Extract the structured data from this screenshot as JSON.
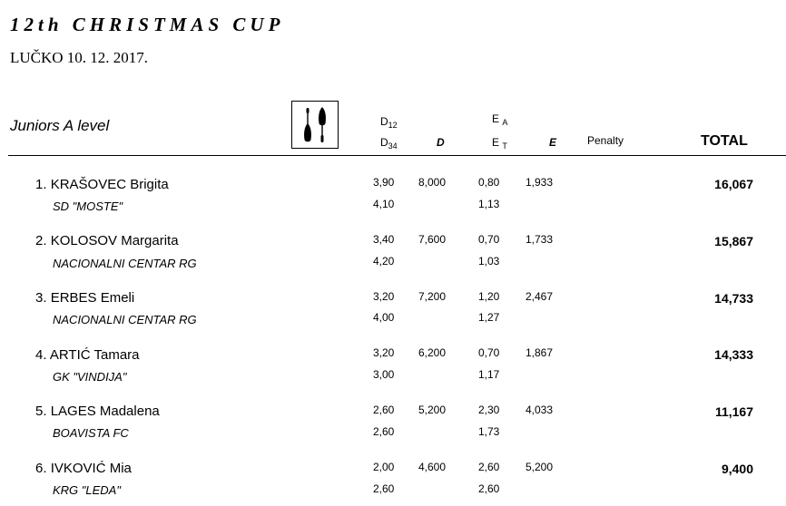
{
  "header": {
    "title": "12th CHRISTMAS CUP",
    "subtitle": "LUČKO 10. 12. 2017."
  },
  "section": {
    "level": "Juniors A level",
    "apparatus_icon": "clubs-icon"
  },
  "columns": {
    "d_upper": "D",
    "d_upper_sub": "12",
    "d_lower": "D",
    "d_lower_sub": "34",
    "d_total": "D",
    "e_upper": "E",
    "e_upper_sub": "A",
    "e_lower": "E",
    "e_lower_sub": "T",
    "e_total": "E",
    "penalty": "Penalty",
    "total": "TOTAL"
  },
  "results": [
    {
      "rank": "1.",
      "name": "KRAŠOVEC Brigita",
      "club": "SD \"MOSTE\"",
      "d12": "3,90",
      "d34": "4,10",
      "d": "8,000",
      "ea": "0,80",
      "et": "1,13",
      "e": "1,933",
      "penalty": "",
      "total": "16,067"
    },
    {
      "rank": "2.",
      "name": "KOLOSOV Margarita",
      "club": "NACIONALNI CENTAR RG",
      "d12": "3,40",
      "d34": "4,20",
      "d": "7,600",
      "ea": "0,70",
      "et": "1,03",
      "e": "1,733",
      "penalty": "",
      "total": "15,867"
    },
    {
      "rank": "3.",
      "name": "ERBES Emeli",
      "club": "NACIONALNI CENTAR RG",
      "d12": "3,20",
      "d34": "4,00",
      "d": "7,200",
      "ea": "1,20",
      "et": "1,27",
      "e": "2,467",
      "penalty": "",
      "total": "14,733"
    },
    {
      "rank": "4.",
      "name": "ARTIĆ Tamara",
      "club": "GK \"VINDIJA\"",
      "d12": "3,20",
      "d34": "3,00",
      "d": "6,200",
      "ea": "0,70",
      "et": "1,17",
      "e": "1,867",
      "penalty": "",
      "total": "14,333"
    },
    {
      "rank": "5.",
      "name": "LAGES Madalena",
      "club": "BOAVISTA FC",
      "d12": "2,60",
      "d34": "2,60",
      "d": "5,200",
      "ea": "2,30",
      "et": "1,73",
      "e": "4,033",
      "penalty": "",
      "total": "11,167"
    },
    {
      "rank": "6.",
      "name": "IVKOVIĆ Mia",
      "club": "KRG \"LEDA\"",
      "d12": "2,00",
      "d34": "2,60",
      "d": "4,600",
      "ea": "2,60",
      "et": "2,60",
      "e": "5,200",
      "penalty": "",
      "total": "9,400"
    }
  ]
}
